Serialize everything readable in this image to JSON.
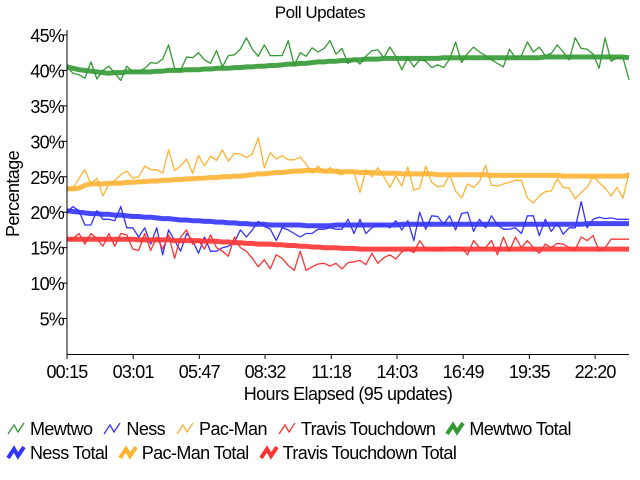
{
  "chart_data": {
    "type": "line",
    "title": "Poll Updates",
    "xlabel": "Hours Elapsed (95 updates)",
    "ylabel": "Percentage",
    "ylim": [
      0,
      45
    ],
    "yticks": [
      5,
      10,
      15,
      20,
      25,
      30,
      35,
      40,
      45
    ],
    "ytick_labels": [
      "5%",
      "10%",
      "15%",
      "20%",
      "25%",
      "30%",
      "35%",
      "40%",
      "45%"
    ],
    "xtick_labels": [
      "00:15",
      "03:01",
      "05:47",
      "08:32",
      "11:18",
      "14:03",
      "16:49",
      "19:35",
      "22:20"
    ],
    "x_start": "00:15",
    "x_interval_minutes": 15,
    "grid": false,
    "legend_position": "bottom",
    "series": [
      {
        "name": "Mewtwo",
        "color": "#339933",
        "style": "thin",
        "values": [
          40.5,
          39.6,
          39.4,
          38.9,
          41.2,
          38.8,
          40.0,
          40.6,
          39.6,
          38.6,
          40.6,
          39.8,
          39.8,
          40.3,
          41.1,
          41.0,
          41.6,
          43.6,
          40.3,
          40.0,
          41.9,
          41.8,
          42.5,
          41.5,
          41.0,
          42.8,
          40.5,
          42.1,
          42.2,
          43.0,
          44.6,
          43.0,
          42.0,
          43.6,
          42.1,
          42.1,
          42.1,
          44.2,
          40.7,
          42.5,
          42.0,
          43.2,
          42.6,
          43.1,
          44.2,
          42.3,
          43.1,
          41.0,
          41.7,
          40.9,
          42.0,
          42.8,
          42.9,
          41.8,
          43.3,
          42.0,
          40.1,
          41.8,
          40.5,
          41.5,
          41.3,
          40.4,
          40.8,
          40.4,
          41.6,
          44.0,
          41.1,
          42.4,
          43.3,
          42.6,
          42.1,
          41.5,
          41.0,
          40.5,
          43.0,
          41.8,
          42.1,
          44.0,
          42.6,
          43.3,
          42.1,
          42.4,
          43.6,
          42.6,
          41.5,
          44.6,
          43.1,
          43.0,
          42.3,
          40.3,
          44.6,
          41.3,
          41.8,
          41.8,
          38.7
        ]
      },
      {
        "name": "Ness",
        "color": "#3333ff",
        "style": "thin",
        "values": [
          20.0,
          20.8,
          20.2,
          18.2,
          18.2,
          20.2,
          19.0,
          19.0,
          18.8,
          20.8,
          17.8,
          17.8,
          16.5,
          17.8,
          15.5,
          17.8,
          14.0,
          17.5,
          16.0,
          14.5,
          17.0,
          16.0,
          14.2,
          16.5,
          14.5,
          14.5,
          15.0,
          15.2,
          15.8,
          17.5,
          16.5,
          17.5,
          18.7,
          18.0,
          17.6,
          16.0,
          17.8,
          17.5,
          17.0,
          16.5,
          17.0,
          17.0,
          17.6,
          17.6,
          17.8,
          17.6,
          17.6,
          19.0,
          17.0,
          19.0,
          17.0,
          17.8,
          18.2,
          18.2,
          17.8,
          18.8,
          17.5,
          18.8,
          16.0,
          20.0,
          17.6,
          19.5,
          19.4,
          18.3,
          19.5,
          17.5,
          19.8,
          20.0,
          17.3,
          19.0,
          17.8,
          19.5,
          18.2,
          17.6,
          17.6,
          17.8,
          17.0,
          19.5,
          19.5,
          16.7,
          19.0,
          17.3,
          18.5,
          16.9,
          17.8,
          17.8,
          21.5,
          17.8,
          19.0,
          19.3,
          19.1,
          19.2,
          19.0,
          19.0,
          19.0
        ]
      },
      {
        "name": "Pac-Man",
        "color": "#ffb333",
        "style": "thin",
        "values": [
          23.3,
          23.3,
          24.8,
          26.0,
          24.0,
          24.8,
          22.3,
          24.0,
          24.5,
          25.3,
          25.8,
          24.8,
          25.0,
          26.5,
          26.0,
          26.0,
          25.5,
          28.8,
          25.9,
          26.5,
          27.5,
          25.5,
          28.0,
          26.5,
          27.9,
          27.3,
          28.8,
          27.2,
          28.3,
          28.2,
          27.7,
          28.2,
          30.5,
          26.3,
          28.4,
          27.5,
          28.0,
          27.4,
          27.4,
          27.8,
          26.8,
          25.5,
          26.5,
          25.6,
          26.3,
          25.5,
          25.3,
          26.0,
          25.6,
          22.8,
          26.0,
          25.0,
          26.3,
          25.0,
          23.5,
          25.1,
          23.7,
          26.4,
          23.1,
          23.4,
          26.5,
          24.2,
          23.6,
          23.7,
          25.3,
          23.0,
          22.0,
          24.0,
          23.5,
          24.3,
          26.6,
          23.8,
          23.7,
          24.0,
          24.2,
          24.5,
          24.5,
          22.0,
          21.3,
          22.3,
          22.9,
          23.0,
          24.7,
          23.5,
          23.4,
          21.9,
          22.8,
          23.5,
          25.0,
          24.2,
          23.4,
          22.3,
          23.5,
          22.0,
          25.6
        ]
      },
      {
        "name": "Travis Touchdown",
        "color": "#ff3333",
        "style": "thin",
        "values": [
          16.0,
          16.3,
          17.0,
          15.5,
          17.0,
          16.3,
          15.2,
          17.0,
          15.2,
          17.0,
          16.8,
          14.8,
          14.6,
          17.0,
          14.6,
          16.5,
          14.8,
          16.8,
          13.5,
          16.5,
          17.5,
          15.5,
          16.0,
          14.8,
          16.8,
          15.0,
          14.5,
          13.8,
          16.5,
          15.0,
          14.5,
          13.5,
          12.3,
          13.3,
          12.0,
          14.0,
          13.5,
          12.5,
          11.8,
          14.5,
          11.8,
          12.3,
          12.7,
          12.8,
          12.4,
          12.8,
          12.0,
          12.9,
          13.0,
          13.2,
          12.6,
          14.2,
          12.8,
          13.6,
          14.0,
          13.4,
          14.4,
          14.8,
          14.3,
          16.0,
          14.8,
          14.8,
          14.6,
          15.0,
          15.0,
          15.1,
          15.0,
          14.0,
          16.0,
          15.0,
          15.0,
          16.0,
          14.0,
          16.5,
          14.5,
          16.5,
          15.0,
          16.0,
          15.0,
          14.2,
          15.5,
          15.0,
          15.6,
          15.5,
          15.0,
          14.7,
          16.5,
          16.0,
          16.7,
          14.5,
          15.0,
          16.2,
          16.2,
          16.2,
          16.2
        ]
      },
      {
        "name": "Mewtwo Total",
        "color": "#339933",
        "style": "thick",
        "values": [
          40.5,
          40.3,
          40.1,
          40.0,
          39.9,
          39.8,
          39.7,
          39.6,
          39.7,
          39.7,
          39.8,
          39.8,
          39.8,
          39.8,
          39.8,
          39.9,
          39.9,
          40.0,
          40.0,
          40.0,
          40.1,
          40.1,
          40.1,
          40.2,
          40.2,
          40.3,
          40.3,
          40.3,
          40.4,
          40.4,
          40.5,
          40.5,
          40.6,
          40.6,
          40.7,
          40.7,
          40.8,
          40.9,
          40.9,
          41.0,
          41.0,
          41.1,
          41.2,
          41.2,
          41.3,
          41.3,
          41.4,
          41.4,
          41.5,
          41.5,
          41.6,
          41.6,
          41.6,
          41.7,
          41.7,
          41.7,
          41.7,
          41.7,
          41.7,
          41.7,
          41.7,
          41.7,
          41.7,
          41.8,
          41.8,
          41.8,
          41.8,
          41.8,
          41.8,
          41.8,
          41.8,
          41.8,
          41.8,
          41.8,
          41.8,
          41.8,
          41.8,
          41.8,
          41.8,
          41.8,
          41.9,
          41.9,
          41.9,
          41.9,
          41.9,
          41.9,
          41.9,
          41.9,
          41.9,
          41.9,
          41.9,
          41.9,
          41.9,
          41.9,
          41.8
        ]
      },
      {
        "name": "Ness Total",
        "color": "#3333ff",
        "style": "thick",
        "values": [
          20.2,
          20.1,
          20.0,
          19.9,
          19.8,
          19.8,
          19.7,
          19.7,
          19.6,
          19.6,
          19.5,
          19.4,
          19.4,
          19.3,
          19.3,
          19.2,
          19.1,
          19.1,
          19.0,
          18.9,
          18.9,
          18.8,
          18.8,
          18.7,
          18.7,
          18.6,
          18.6,
          18.5,
          18.5,
          18.4,
          18.4,
          18.3,
          18.3,
          18.3,
          18.2,
          18.2,
          18.2,
          18.2,
          18.2,
          18.2,
          18.1,
          18.1,
          18.1,
          18.1,
          18.1,
          18.2,
          18.2,
          18.2,
          18.2,
          18.2,
          18.2,
          18.2,
          18.2,
          18.2,
          18.2,
          18.2,
          18.3,
          18.3,
          18.3,
          18.3,
          18.3,
          18.3,
          18.3,
          18.3,
          18.3,
          18.3,
          18.3,
          18.3,
          18.3,
          18.3,
          18.3,
          18.3,
          18.3,
          18.3,
          18.3,
          18.3,
          18.3,
          18.3,
          18.3,
          18.3,
          18.3,
          18.3,
          18.3,
          18.3,
          18.3,
          18.3,
          18.3,
          18.4,
          18.4,
          18.4,
          18.4,
          18.4,
          18.4,
          18.4,
          18.4
        ]
      },
      {
        "name": "Pac-Man Total",
        "color": "#ffb333",
        "style": "thick",
        "values": [
          23.3,
          23.3,
          23.4,
          23.8,
          24.0,
          24.0,
          24.0,
          24.1,
          24.1,
          24.1,
          24.2,
          24.2,
          24.3,
          24.3,
          24.4,
          24.4,
          24.5,
          24.5,
          24.6,
          24.6,
          24.7,
          24.7,
          24.8,
          24.8,
          24.9,
          24.9,
          25.0,
          25.0,
          25.1,
          25.1,
          25.2,
          25.3,
          25.4,
          25.4,
          25.5,
          25.6,
          25.6,
          25.7,
          25.8,
          25.8,
          25.9,
          25.9,
          25.9,
          25.8,
          25.8,
          25.8,
          25.7,
          25.7,
          25.7,
          25.6,
          25.6,
          25.6,
          25.5,
          25.5,
          25.5,
          25.5,
          25.4,
          25.4,
          25.4,
          25.4,
          25.4,
          25.4,
          25.3,
          25.3,
          25.3,
          25.3,
          25.3,
          25.3,
          25.3,
          25.3,
          25.3,
          25.2,
          25.2,
          25.2,
          25.2,
          25.2,
          25.2,
          25.2,
          25.2,
          25.2,
          25.2,
          25.2,
          25.2,
          25.1,
          25.1,
          25.1,
          25.1,
          25.1,
          25.1,
          25.1,
          25.1,
          25.1,
          25.1,
          25.1,
          25.2
        ]
      },
      {
        "name": "Travis Touchdown Total",
        "color": "#ff3333",
        "style": "thick",
        "values": [
          16.2,
          16.2,
          16.2,
          16.2,
          16.2,
          16.2,
          16.2,
          16.2,
          16.2,
          16.2,
          16.2,
          16.2,
          16.1,
          16.1,
          16.1,
          16.1,
          16.1,
          16.1,
          16.0,
          16.0,
          16.0,
          16.0,
          16.0,
          15.9,
          15.9,
          15.9,
          15.8,
          15.8,
          15.7,
          15.7,
          15.6,
          15.6,
          15.5,
          15.5,
          15.5,
          15.4,
          15.4,
          15.3,
          15.3,
          15.2,
          15.2,
          15.1,
          15.1,
          15.0,
          15.0,
          15.0,
          14.9,
          14.9,
          14.9,
          14.8,
          14.8,
          14.8,
          14.8,
          14.8,
          14.8,
          14.8,
          14.8,
          14.8,
          14.8,
          14.8,
          14.8,
          14.8,
          14.8,
          14.8,
          14.8,
          14.8,
          14.8,
          14.8,
          14.8,
          14.8,
          14.8,
          14.8,
          14.8,
          14.8,
          14.8,
          14.8,
          14.8,
          14.8,
          14.8,
          14.8,
          14.8,
          14.8,
          14.8,
          14.8,
          14.8,
          14.8,
          14.8,
          14.8,
          14.8,
          14.8,
          14.8,
          14.8,
          14.8,
          14.8,
          14.8
        ]
      }
    ]
  }
}
